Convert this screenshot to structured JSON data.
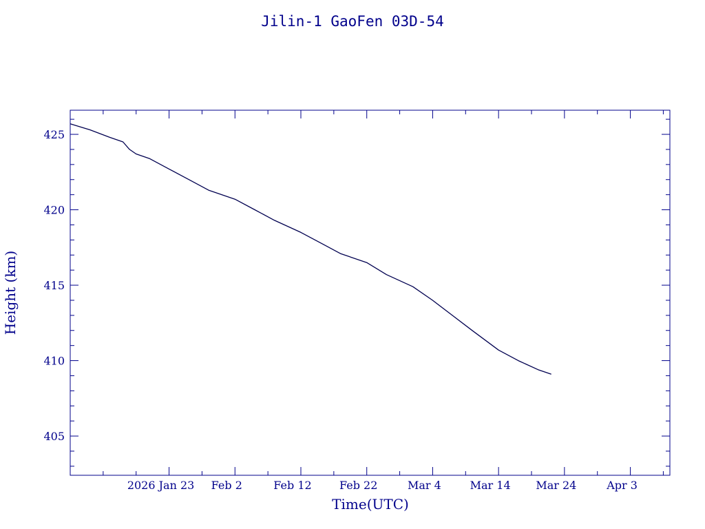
{
  "chart_data": {
    "type": "line",
    "title": "Jilin-1 GaoFen 03D-54",
    "xlabel": "Time(UTC)",
    "ylabel": "Height (km)",
    "colors": {
      "axis": "#00008b",
      "line": "#000050"
    },
    "xlim": [
      "2026-01-08",
      "2026-04-09"
    ],
    "ylim": [
      402.4,
      426.6
    ],
    "x_ticks": [
      {
        "date": "2026-01-23",
        "label": "2026 Jan 23"
      },
      {
        "date": "2026-02-02",
        "label": "Feb  2"
      },
      {
        "date": "2026-02-12",
        "label": "Feb 12"
      },
      {
        "date": "2026-02-22",
        "label": "Feb 22"
      },
      {
        "date": "2026-03-04",
        "label": "Mar  4"
      },
      {
        "date": "2026-03-14",
        "label": "Mar 14"
      },
      {
        "date": "2026-03-24",
        "label": "Mar 24"
      },
      {
        "date": "2026-04-03",
        "label": "Apr  3"
      }
    ],
    "y_ticks": [
      {
        "value": 405,
        "label": "405"
      },
      {
        "value": 410,
        "label": "410"
      },
      {
        "value": 415,
        "label": "415"
      },
      {
        "value": 420,
        "label": "420"
      },
      {
        "value": 425,
        "label": "425"
      }
    ],
    "series": [
      {
        "x": [
          "2026-01-08",
          "2026-01-11",
          "2026-01-14",
          "2026-01-16",
          "2026-01-17",
          "2026-01-18",
          "2026-01-20",
          "2026-01-23",
          "2026-01-26",
          "2026-01-29",
          "2026-02-02",
          "2026-02-05",
          "2026-02-08",
          "2026-02-12",
          "2026-02-15",
          "2026-02-18",
          "2026-02-22",
          "2026-02-25",
          "2026-03-01",
          "2026-03-04",
          "2026-03-07",
          "2026-03-10",
          "2026-03-14",
          "2026-03-17",
          "2026-03-20",
          "2026-03-22"
        ],
        "values": [
          425.7,
          425.3,
          424.8,
          424.5,
          424.0,
          423.7,
          423.4,
          422.7,
          422.0,
          421.3,
          420.7,
          420.0,
          419.3,
          418.5,
          417.8,
          417.1,
          416.5,
          415.7,
          414.9,
          414.0,
          413.0,
          412.0,
          410.7,
          410.0,
          409.4,
          409.1
        ]
      }
    ]
  }
}
